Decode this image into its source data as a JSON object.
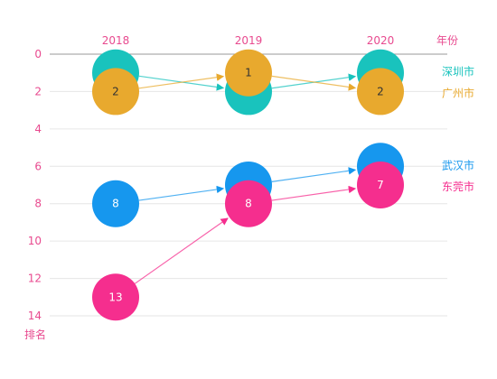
{
  "chart_data": {
    "type": "scatter",
    "title": "",
    "xlabel": "年份",
    "ylabel": "排名",
    "x": [
      "2018",
      "2019",
      "2020"
    ],
    "ylim": [
      0,
      14
    ],
    "yticks": [
      0,
      2,
      4,
      6,
      8,
      10,
      12,
      14
    ],
    "y_inverted": true,
    "grid": true,
    "series": [
      {
        "name": "深圳市",
        "color": "#19c3bd",
        "values": [
          1,
          2,
          1
        ]
      },
      {
        "name": "广州市",
        "color": "#e8a92e",
        "values": [
          2,
          1,
          2
        ]
      },
      {
        "name": "武汉市",
        "color": "#1697ee",
        "values": [
          8,
          7,
          6
        ]
      },
      {
        "name": "东莞市",
        "color": "#f52e8e",
        "values": [
          13,
          8,
          7
        ]
      }
    ]
  }
}
